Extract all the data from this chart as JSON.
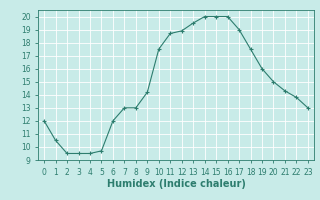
{
  "title": "",
  "xlabel": "Humidex (Indice chaleur)",
  "x": [
    0,
    1,
    2,
    3,
    4,
    5,
    6,
    7,
    8,
    9,
    10,
    11,
    12,
    13,
    14,
    15,
    16,
    17,
    18,
    19,
    20,
    21,
    22,
    23
  ],
  "y": [
    12,
    10.5,
    9.5,
    9.5,
    9.5,
    9.7,
    12,
    13,
    13,
    14.2,
    17.5,
    18.7,
    18.9,
    19.5,
    20.0,
    20.0,
    20.0,
    19.0,
    17.5,
    16.0,
    15.0,
    14.3,
    13.8,
    13.0
  ],
  "line_color": "#2d7d6e",
  "marker": "+",
  "bg_color": "#c8ebe8",
  "grid_color": "#b8d8d4",
  "ylim": [
    9,
    20.5
  ],
  "xlim": [
    -0.5,
    23.5
  ],
  "yticks": [
    9,
    10,
    11,
    12,
    13,
    14,
    15,
    16,
    17,
    18,
    19,
    20
  ],
  "xticks": [
    0,
    1,
    2,
    3,
    4,
    5,
    6,
    7,
    8,
    9,
    10,
    11,
    12,
    13,
    14,
    15,
    16,
    17,
    18,
    19,
    20,
    21,
    22,
    23
  ],
  "tick_fontsize": 5.5,
  "label_fontsize": 7
}
